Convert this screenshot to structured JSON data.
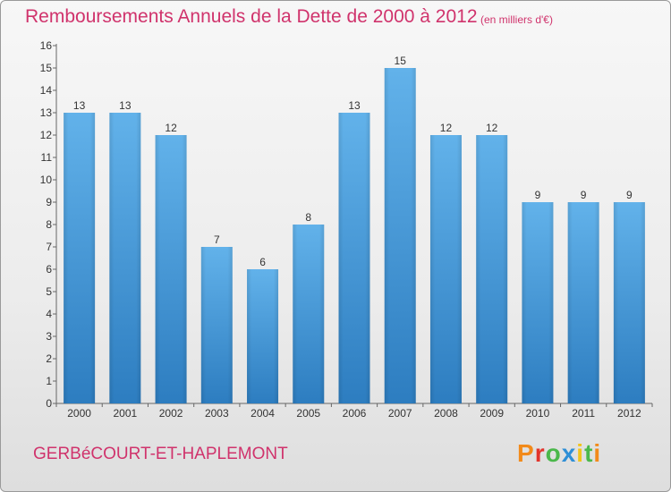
{
  "header": {
    "title": "Remboursements Annuels de la Dette de 2000 à 2012",
    "unit": "(en milliers d'€)"
  },
  "footer": {
    "commune": "GERBéCOURT-ET-HAPLEMONT",
    "brand": "Proxiti"
  },
  "colors": {
    "title": "#d0336c",
    "bar_light": "#62b2ea",
    "bar_dark": "#2d7dc0"
  },
  "chart_data": {
    "type": "bar",
    "title": "Remboursements Annuels de la Dette de 2000 à 2012",
    "subtitle": "(en milliers d'€)",
    "xlabel": "",
    "ylabel": "",
    "categories": [
      "2000",
      "2001",
      "2002",
      "2003",
      "2004",
      "2005",
      "2006",
      "2007",
      "2008",
      "2009",
      "2010",
      "2011",
      "2012"
    ],
    "values": [
      13,
      13,
      12,
      7,
      6,
      8,
      13,
      15,
      12,
      12,
      9,
      9,
      9
    ],
    "ylim": [
      0,
      16
    ],
    "yticks": [
      0,
      1,
      2,
      3,
      4,
      5,
      6,
      7,
      8,
      9,
      10,
      11,
      12,
      13,
      14,
      15,
      16
    ],
    "grid": false,
    "data_labels": true
  }
}
